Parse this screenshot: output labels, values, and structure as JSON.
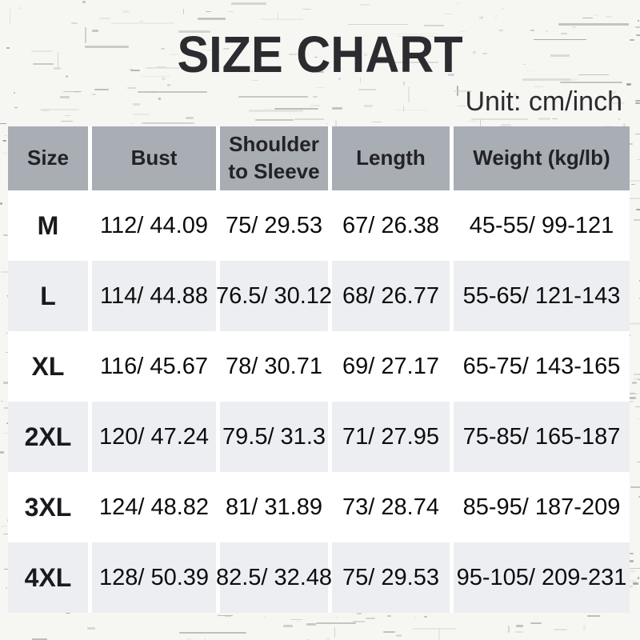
{
  "title": "SIZE CHART",
  "unit_label": "Unit: cm/inch",
  "colors": {
    "page_bg": "#f6f6f3",
    "title_text": "#2b2b30",
    "header_bg": "#a8aeb4",
    "header_text": "#222228",
    "row_bg": "#ffffff",
    "stripe_bg": "#eceef1",
    "cell_text": "#0c0c0e"
  },
  "chart_data": {
    "type": "table",
    "title": "SIZE CHART",
    "unit": "cm/inch",
    "columns": [
      "Size",
      "Bust",
      "Shoulder to Sleeve",
      "Length",
      "Weight (kg/lb)"
    ],
    "rows": [
      [
        "M",
        "112/ 44.09",
        "75/ 29.53",
        "67/ 26.38",
        "45-55/ 99-121"
      ],
      [
        "L",
        "114/ 44.88",
        "76.5/ 30.12",
        "68/ 26.77",
        "55-65/ 121-143"
      ],
      [
        "XL",
        "116/ 45.67",
        "78/ 30.71",
        "69/ 27.17",
        "65-75/ 143-165"
      ],
      [
        "2XL",
        "120/ 47.24",
        "79.5/ 31.3",
        "71/ 27.95",
        "75-85/ 165-187"
      ],
      [
        "3XL",
        "124/ 48.82",
        "81/ 31.89",
        "73/ 28.74",
        "85-95/ 187-209"
      ],
      [
        "4XL",
        "128/ 50.39",
        "82.5/ 32.48",
        "75/ 29.53",
        "95-105/ 209-231"
      ]
    ]
  }
}
